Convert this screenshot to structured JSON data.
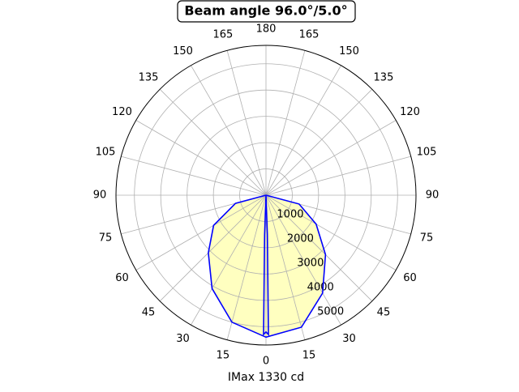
{
  "chart_data": {
    "type": "polar",
    "title": "Beam angle 96.0°/5.0°",
    "xlabel": "IMax 1330 cd",
    "xlim": [
      -180,
      180
    ],
    "xticks": [
      0,
      15,
      30,
      45,
      60,
      75,
      90,
      105,
      120,
      135,
      150,
      165,
      180,
      {
        "value": -15,
        "label": "15"
      },
      {
        "value": -30,
        "label": "30"
      },
      {
        "value": -45,
        "label": "45"
      },
      {
        "value": -60,
        "label": "60"
      },
      {
        "value": -75,
        "label": "75"
      },
      {
        "value": -90,
        "label": "90"
      },
      {
        "value": -105,
        "label": "105"
      },
      {
        "value": -120,
        "label": "120"
      },
      {
        "value": -135,
        "label": "135"
      },
      {
        "value": -150,
        "label": "150"
      },
      {
        "value": -165,
        "label": "165"
      }
    ],
    "ylim": [
      0,
      5700
    ],
    "yticks": [
      1000,
      2000,
      3000,
      4000,
      5000
    ],
    "grid": true,
    "series": [
      {
        "color": "#0000ff",
        "fill": "#ffffc0",
        "x": [
          -90,
          -75,
          -60,
          -45,
          -30,
          -15,
          0,
          15,
          30,
          45,
          60,
          75,
          90
        ],
        "values": [
          0,
          1200,
          2300,
          3100,
          4100,
          5000,
          5400,
          5200,
          4300,
          3200,
          2200,
          1300,
          0
        ]
      },
      {
        "color": "#0000ff",
        "x": [
          -4,
          -2,
          -1,
          0,
          1,
          2,
          4
        ],
        "values": [
          0,
          1500,
          5300,
          5200,
          5300,
          1500,
          0
        ]
      }
    ]
  }
}
